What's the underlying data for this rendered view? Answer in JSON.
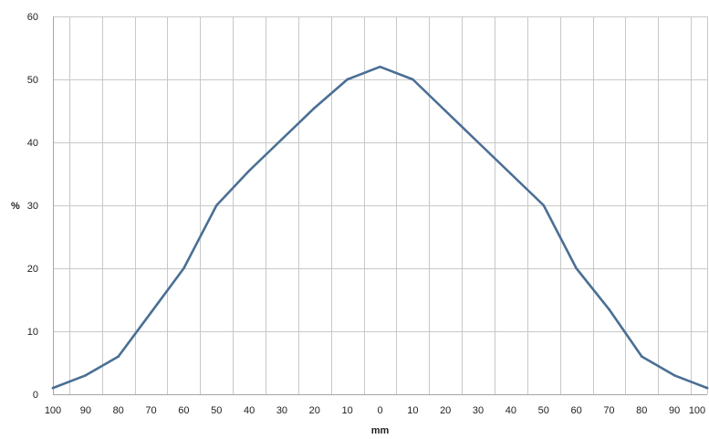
{
  "chart_data": {
    "type": "line",
    "title": "",
    "xlabel": "mm",
    "ylabel": "%",
    "x_tick_labels": [
      "100",
      "90",
      "80",
      "70",
      "60",
      "50",
      "40",
      "30",
      "20",
      "10",
      "0",
      "10",
      "20",
      "30",
      "40",
      "50",
      "60",
      "70",
      "80",
      "90",
      "100"
    ],
    "x": [
      -100,
      -90,
      -80,
      -70,
      -60,
      -50,
      -40,
      -30,
      -20,
      -10,
      0,
      10,
      20,
      30,
      40,
      50,
      60,
      70,
      80,
      90,
      100
    ],
    "y_ticks": [
      0,
      10,
      20,
      30,
      40,
      50,
      60
    ],
    "ylim": [
      0,
      60
    ],
    "xlim": [
      -100,
      100
    ],
    "grid": true,
    "legend": "none",
    "series": [
      {
        "values": [
          1,
          3,
          6,
          13,
          20,
          30,
          35.5,
          40.5,
          45.5,
          50,
          52,
          50,
          45,
          40,
          35,
          30,
          20,
          13.5,
          6,
          3,
          1
        ],
        "color": "#4a6f94"
      }
    ]
  }
}
